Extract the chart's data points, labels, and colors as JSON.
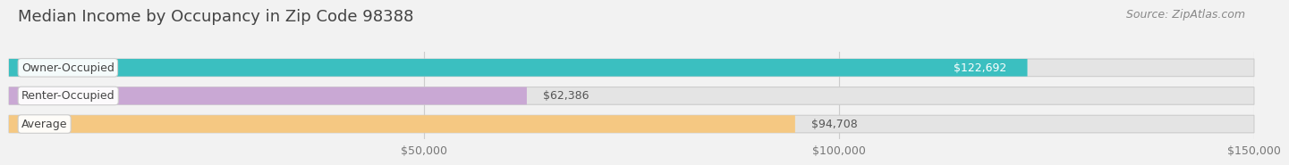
{
  "title": "Median Income by Occupancy in Zip Code 98388",
  "source": "Source: ZipAtlas.com",
  "categories": [
    "Owner-Occupied",
    "Renter-Occupied",
    "Average"
  ],
  "values": [
    122692,
    62386,
    94708
  ],
  "labels": [
    "$122,692",
    "$62,386",
    "$94,708"
  ],
  "bar_colors": [
    "#3bbfc0",
    "#c9a8d4",
    "#f5c882"
  ],
  "xlim": [
    0,
    150000
  ],
  "xticks": [
    50000,
    100000,
    150000
  ],
  "xticklabels": [
    "$50,000",
    "$100,000",
    "$150,000"
  ],
  "background_color": "#f2f2f2",
  "bar_background_color": "#e4e4e4",
  "title_fontsize": 13,
  "source_fontsize": 9,
  "label_fontsize": 9,
  "category_fontsize": 9,
  "bar_height": 0.62,
  "label_inside_threshold": 110000,
  "label_inside_color": "#ffffff",
  "label_outside_color": "#555555"
}
